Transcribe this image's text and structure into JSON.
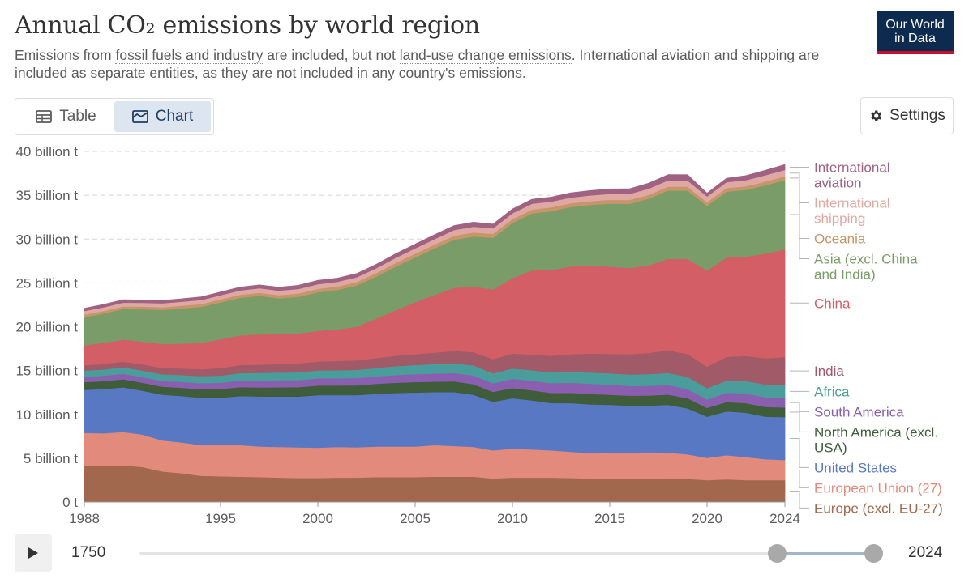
{
  "header": {
    "title": "Annual CO₂ emissions by world region",
    "subtitle_part1": "Emissions from ",
    "subtitle_link1": "fossil fuels and industry",
    "subtitle_part2": " are included, but not ",
    "subtitle_link2": "land-use change emissions",
    "subtitle_part3": ". International aviation and shipping are included as separate entities, as they are not included in any country's emissions.",
    "logo_line1": "Our World",
    "logo_line2": "in Data"
  },
  "tabs": [
    {
      "label": "Table",
      "icon": "table-icon",
      "active": false
    },
    {
      "label": "Chart",
      "icon": "chart-icon",
      "active": true
    }
  ],
  "settings_label": "Settings",
  "timeline": {
    "start_label": "1750",
    "end_label": "2024",
    "selected_start": 1988,
    "selected_end": 2024
  },
  "chart_data": {
    "type": "area",
    "stacked": true,
    "x": [
      1988,
      1989,
      1990,
      1991,
      1992,
      1993,
      1994,
      1995,
      1996,
      1997,
      1998,
      1999,
      2000,
      2001,
      2002,
      2003,
      2004,
      2005,
      2006,
      2007,
      2008,
      2009,
      2010,
      2011,
      2012,
      2013,
      2014,
      2015,
      2016,
      2017,
      2018,
      2019,
      2020,
      2021,
      2022,
      2023,
      2024
    ],
    "xticks": [
      1988,
      1995,
      2000,
      2005,
      2010,
      2015,
      2020,
      2024
    ],
    "yticks": [
      0,
      5,
      10,
      15,
      20,
      25,
      30,
      35,
      40
    ],
    "ytick_labels": [
      "0 t",
      "5 billion t",
      "10 billion t",
      "15 billion t",
      "20 billion t",
      "25 billion t",
      "30 billion t",
      "35 billion t",
      "40 billion t"
    ],
    "ylim": [
      0,
      40
    ],
    "grid": true,
    "series": [
      {
        "name": "Europe (excl. EU-27)",
        "color": "#a2684d",
        "values": [
          4.1,
          4.1,
          4.2,
          4.0,
          3.5,
          3.3,
          3.0,
          2.95,
          2.9,
          2.85,
          2.8,
          2.75,
          2.75,
          2.8,
          2.8,
          2.85,
          2.85,
          2.85,
          2.9,
          2.9,
          2.9,
          2.7,
          2.8,
          2.8,
          2.8,
          2.75,
          2.7,
          2.7,
          2.7,
          2.7,
          2.7,
          2.65,
          2.5,
          2.6,
          2.5,
          2.5,
          2.5
        ]
      },
      {
        "name": "European Union (27)",
        "color": "#e28a7b",
        "values": [
          3.8,
          3.75,
          3.8,
          3.7,
          3.55,
          3.5,
          3.5,
          3.55,
          3.6,
          3.5,
          3.5,
          3.5,
          3.45,
          3.5,
          3.45,
          3.5,
          3.5,
          3.5,
          3.6,
          3.5,
          3.4,
          3.2,
          3.3,
          3.2,
          3.1,
          3.0,
          2.9,
          2.95,
          2.95,
          3.0,
          2.95,
          2.8,
          2.55,
          2.75,
          2.65,
          2.4,
          2.3
        ]
      },
      {
        "name": "United States",
        "color": "#5978c4",
        "values": [
          4.9,
          5.05,
          5.1,
          5.0,
          5.2,
          5.3,
          5.4,
          5.4,
          5.6,
          5.7,
          5.75,
          5.8,
          6.0,
          5.9,
          5.95,
          6.0,
          6.1,
          6.15,
          6.05,
          6.15,
          5.95,
          5.55,
          5.75,
          5.6,
          5.4,
          5.55,
          5.55,
          5.45,
          5.35,
          5.3,
          5.45,
          5.25,
          4.7,
          5.0,
          5.05,
          4.85,
          4.9
        ]
      },
      {
        "name": "North America (excl. USA)",
        "color": "#3f5d3a",
        "values": [
          0.9,
          0.9,
          0.92,
          0.92,
          0.93,
          0.95,
          0.97,
          1.0,
          1.02,
          1.04,
          1.05,
          1.07,
          1.1,
          1.1,
          1.12,
          1.15,
          1.17,
          1.2,
          1.2,
          1.22,
          1.2,
          1.12,
          1.17,
          1.17,
          1.15,
          1.17,
          1.18,
          1.15,
          1.15,
          1.16,
          1.17,
          1.15,
          1.0,
          1.07,
          1.1,
          1.1,
          1.1
        ]
      },
      {
        "name": "South America",
        "color": "#8a5fb0",
        "values": [
          0.6,
          0.62,
          0.62,
          0.63,
          0.65,
          0.67,
          0.7,
          0.72,
          0.75,
          0.78,
          0.8,
          0.8,
          0.82,
          0.83,
          0.82,
          0.83,
          0.87,
          0.9,
          0.92,
          0.95,
          1.0,
          0.97,
          1.05,
          1.08,
          1.12,
          1.15,
          1.17,
          1.15,
          1.1,
          1.1,
          1.08,
          1.05,
          0.95,
          1.05,
          1.1,
          1.1,
          1.1
        ]
      },
      {
        "name": "Africa",
        "color": "#4a9d9a",
        "values": [
          0.7,
          0.72,
          0.74,
          0.75,
          0.76,
          0.77,
          0.8,
          0.82,
          0.85,
          0.87,
          0.88,
          0.9,
          0.9,
          0.92,
          0.95,
          0.98,
          1.02,
          1.05,
          1.08,
          1.12,
          1.15,
          1.15,
          1.18,
          1.2,
          1.22,
          1.25,
          1.3,
          1.3,
          1.32,
          1.35,
          1.38,
          1.4,
          1.3,
          1.4,
          1.42,
          1.45,
          1.45
        ]
      },
      {
        "name": "India",
        "color": "#a05a68",
        "values": [
          0.6,
          0.63,
          0.65,
          0.7,
          0.73,
          0.75,
          0.8,
          0.85,
          0.9,
          0.95,
          0.97,
          1.0,
          1.02,
          1.05,
          1.08,
          1.12,
          1.17,
          1.22,
          1.3,
          1.4,
          1.5,
          1.62,
          1.7,
          1.78,
          1.9,
          2.0,
          2.15,
          2.2,
          2.3,
          2.4,
          2.58,
          2.6,
          2.45,
          2.7,
          2.85,
          3.0,
          3.2
        ]
      },
      {
        "name": "China",
        "color": "#d35e66",
        "values": [
          2.3,
          2.4,
          2.5,
          2.6,
          2.7,
          2.85,
          3.0,
          3.3,
          3.4,
          3.45,
          3.4,
          3.4,
          3.5,
          3.6,
          3.85,
          4.5,
          5.2,
          5.95,
          6.6,
          7.2,
          7.5,
          7.95,
          8.6,
          9.6,
          9.8,
          10.0,
          10.05,
          9.95,
          9.85,
          10.0,
          10.45,
          10.85,
          10.95,
          11.35,
          11.35,
          11.95,
          12.3
        ]
      },
      {
        "name": "Asia (excl. China and India)",
        "color": "#7a9c68",
        "values": [
          3.2,
          3.35,
          3.5,
          3.7,
          3.9,
          4.0,
          4.1,
          4.2,
          4.3,
          4.4,
          4.1,
          4.2,
          4.4,
          4.5,
          4.7,
          4.8,
          5.0,
          5.1,
          5.3,
          5.5,
          5.7,
          5.9,
          6.3,
          6.5,
          6.7,
          6.8,
          6.9,
          7.2,
          7.3,
          7.6,
          7.8,
          7.8,
          7.4,
          7.5,
          7.6,
          7.8,
          7.9
        ]
      },
      {
        "name": "Oceania",
        "color": "#c6966a",
        "values": [
          0.3,
          0.3,
          0.31,
          0.31,
          0.32,
          0.32,
          0.33,
          0.34,
          0.35,
          0.36,
          0.37,
          0.38,
          0.39,
          0.4,
          0.4,
          0.41,
          0.42,
          0.43,
          0.44,
          0.45,
          0.46,
          0.45,
          0.45,
          0.45,
          0.45,
          0.44,
          0.44,
          0.44,
          0.45,
          0.45,
          0.45,
          0.44,
          0.42,
          0.42,
          0.42,
          0.42,
          0.42
        ]
      },
      {
        "name": "International shipping",
        "color": "#e0a8a2",
        "values": [
          0.4,
          0.42,
          0.42,
          0.43,
          0.44,
          0.45,
          0.46,
          0.47,
          0.48,
          0.5,
          0.5,
          0.52,
          0.53,
          0.53,
          0.54,
          0.55,
          0.57,
          0.6,
          0.62,
          0.65,
          0.67,
          0.62,
          0.65,
          0.66,
          0.64,
          0.64,
          0.65,
          0.67,
          0.68,
          0.7,
          0.71,
          0.7,
          0.65,
          0.67,
          0.7,
          0.72,
          0.72
        ]
      },
      {
        "name": "International aviation",
        "color": "#a06282",
        "values": [
          0.3,
          0.31,
          0.32,
          0.31,
          0.32,
          0.33,
          0.34,
          0.35,
          0.36,
          0.37,
          0.38,
          0.4,
          0.42,
          0.41,
          0.41,
          0.42,
          0.45,
          0.47,
          0.48,
          0.5,
          0.5,
          0.47,
          0.48,
          0.5,
          0.51,
          0.52,
          0.54,
          0.56,
          0.58,
          0.61,
          0.63,
          0.65,
          0.36,
          0.42,
          0.5,
          0.57,
          0.61
        ]
      }
    ],
    "legend_placement": "right"
  }
}
